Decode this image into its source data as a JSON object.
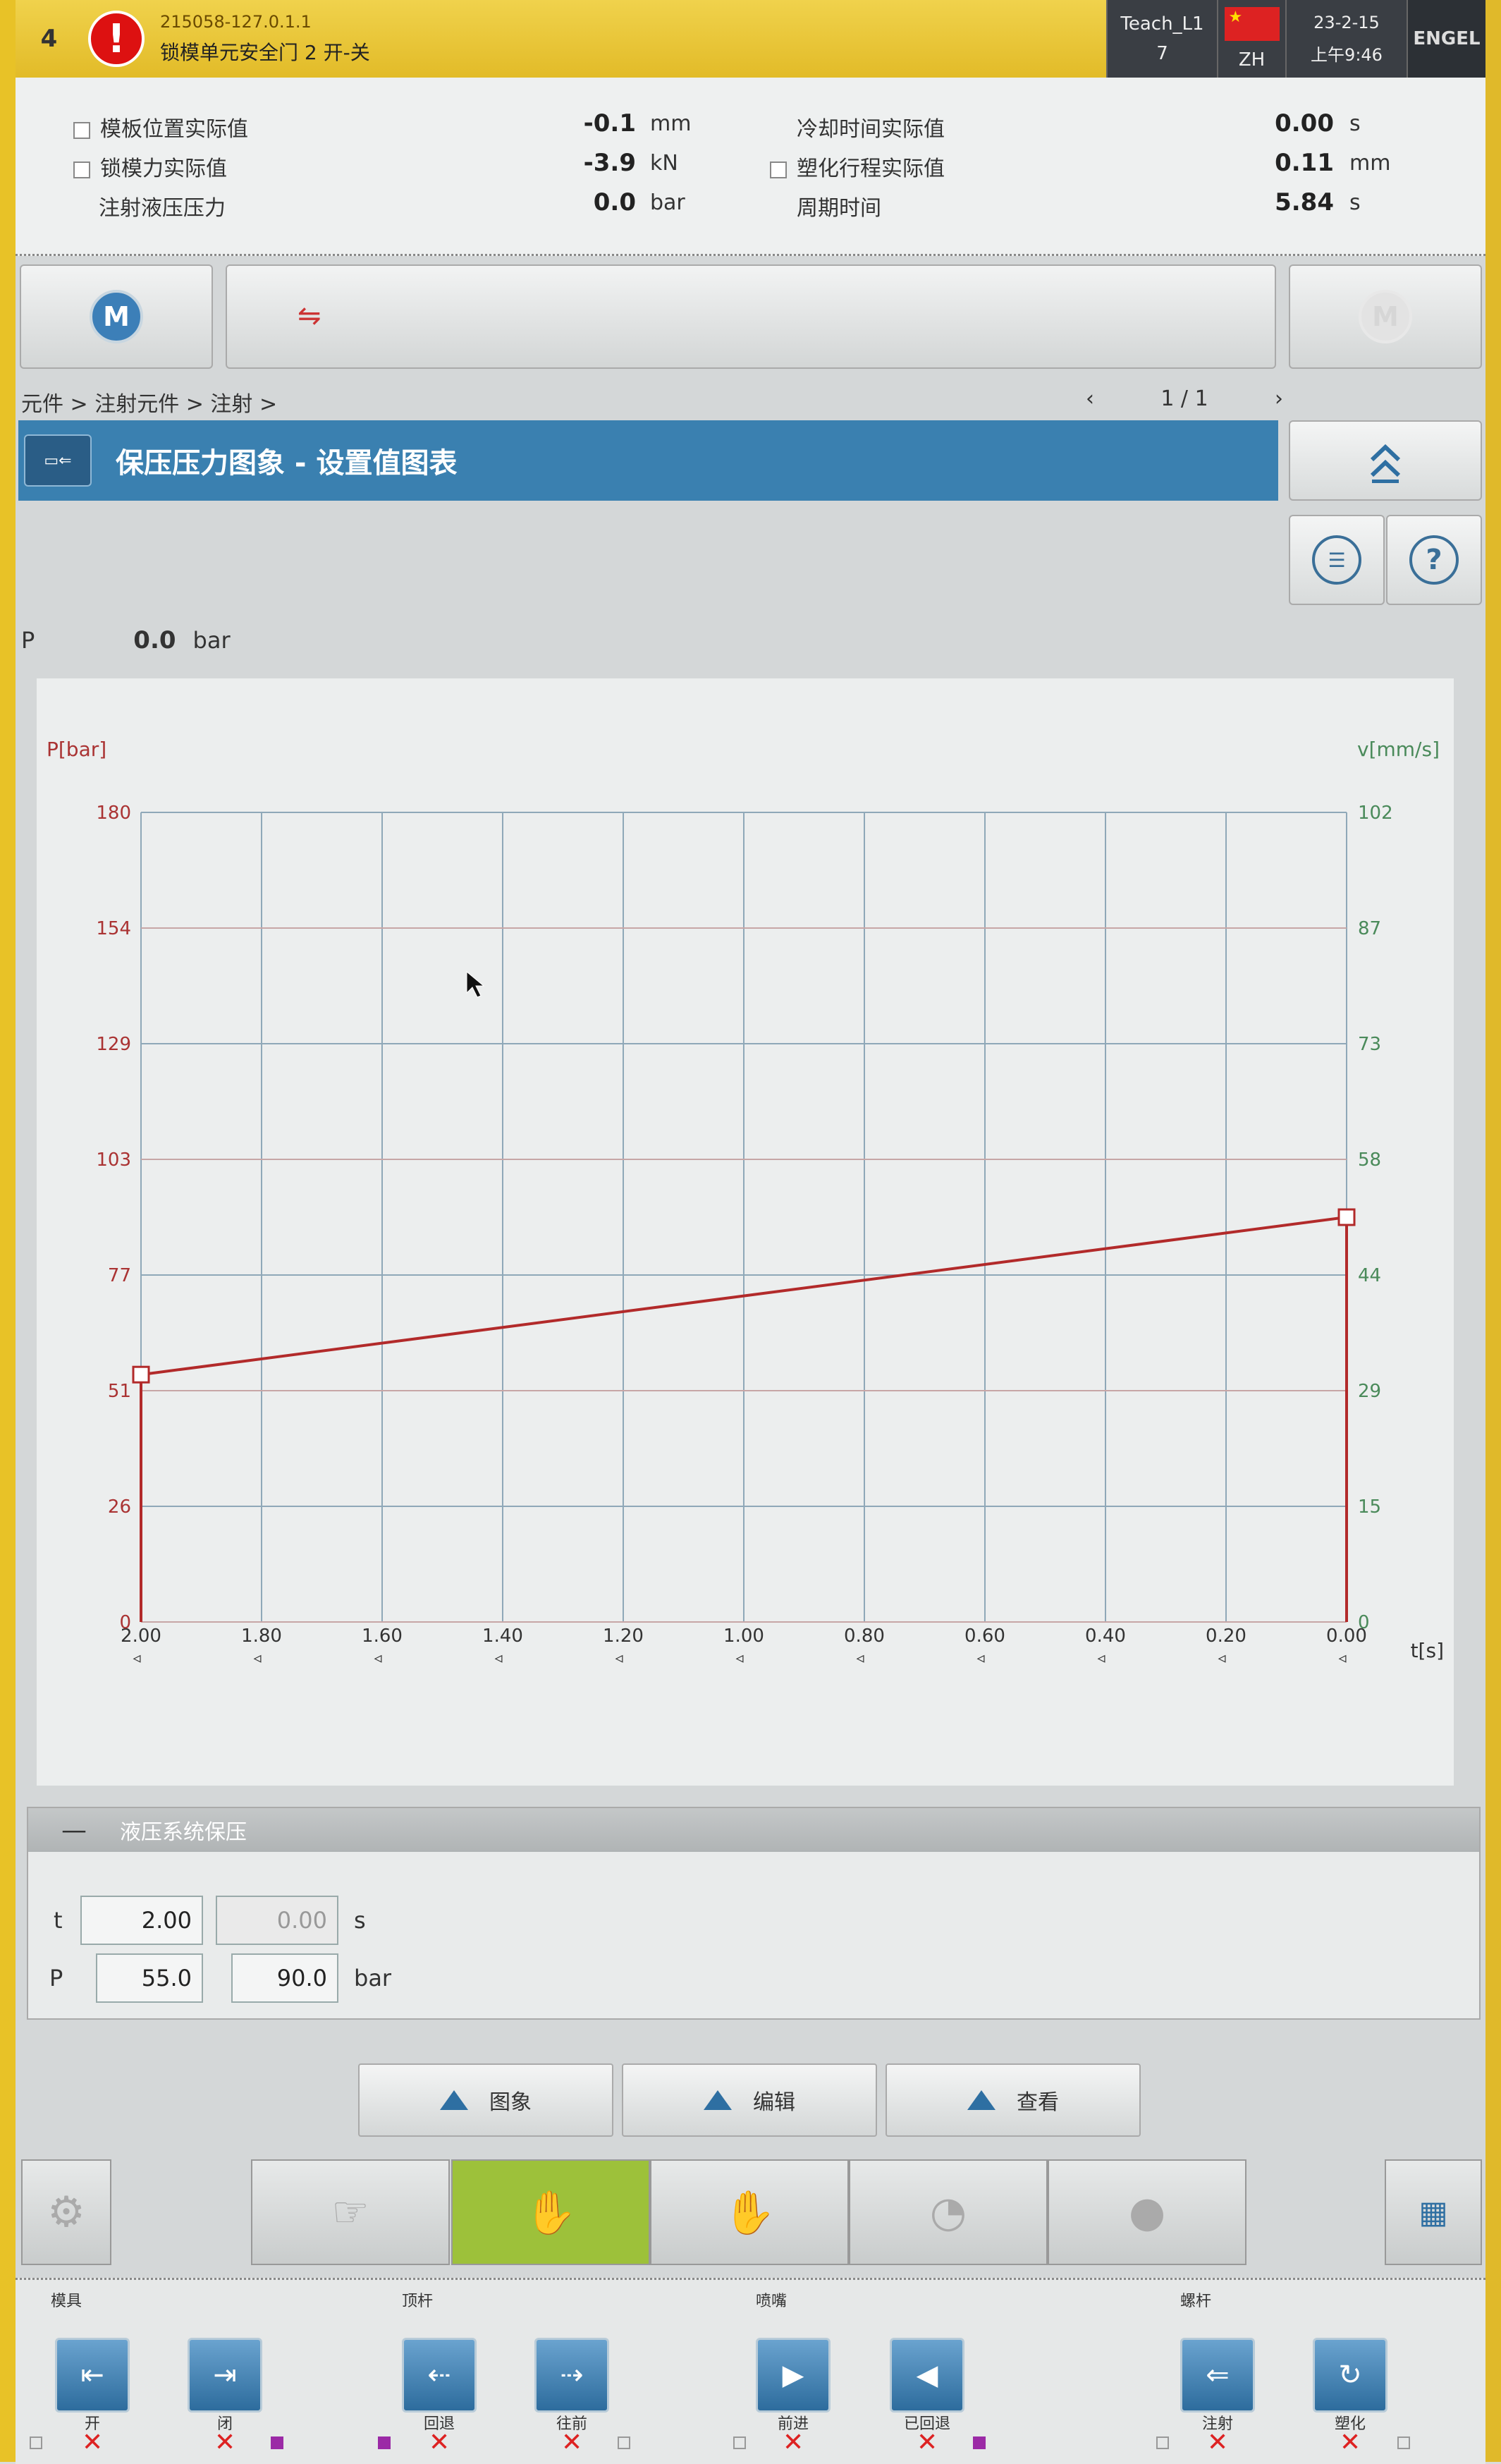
{
  "header": {
    "number": "4",
    "alarm_icon": "alert-icon",
    "message_line1": "215058-127.0.1.1",
    "message_line2": "锁模单元安全门 2 开-关",
    "user": "Teach_L1",
    "user_level": "7",
    "language": "ZH",
    "date": "23-2-15",
    "time": "上午9:46",
    "brand": "ENGEL"
  },
  "actual_values": [
    {
      "label": "模板位置实际值",
      "value": "-0.1",
      "unit": "mm",
      "checkbox": true
    },
    {
      "label": "锁模力实际值",
      "value": "-3.9",
      "unit": "kN",
      "checkbox": true
    },
    {
      "label": "注射液压压力",
      "value": "0.0",
      "unit": "bar",
      "checkbox": false
    },
    {
      "label": "冷却时间实际值",
      "value": "0.00",
      "unit": "s",
      "checkbox": false
    },
    {
      "label": "塑化行程实际值",
      "value": "0.11",
      "unit": "mm",
      "checkbox": true
    },
    {
      "label": "周期时间",
      "value": "5.84",
      "unit": "s",
      "checkbox": false
    }
  ],
  "strip": {
    "left_icon": "M",
    "right_icon": "M"
  },
  "breadcrumb": "元件 > 注射元件 > 注射 >",
  "pager": {
    "prev": "‹",
    "page": "1 / 1",
    "next": "›"
  },
  "title": "保压压力图象 - 设置值图表",
  "help_label": "?",
  "p_readout": {
    "label": "P",
    "value": "0.0",
    "unit": "bar"
  },
  "chart_data": {
    "type": "line",
    "ylabel_left": "P[bar]",
    "ylabel_right": "v[mm/s]",
    "xlabel": "t[s]",
    "x_ticks": [
      "2.00",
      "1.80",
      "1.60",
      "1.40",
      "1.20",
      "1.00",
      "0.80",
      "0.60",
      "0.40",
      "0.20",
      "0.00"
    ],
    "y_left_ticks": [
      "180",
      "154",
      "129",
      "103",
      "77",
      "51",
      "26",
      "0"
    ],
    "y_right_ticks": [
      "102",
      "87",
      "73",
      "58",
      "44",
      "29",
      "15",
      "0"
    ],
    "xlim": [
      2.0,
      0.0
    ],
    "ylim_left": [
      0,
      180
    ],
    "ylim_right": [
      0,
      102
    ],
    "grid": true,
    "series": [
      {
        "x": [
          2.0,
          2.0,
          0.0,
          0.0
        ],
        "y": [
          0,
          55.0,
          90.0,
          0
        ],
        "color": "#b22a2a"
      }
    ]
  },
  "panel": {
    "collapse": "—",
    "name": "液压系统保压",
    "t_label": "t",
    "t_value": "2.00",
    "t_value2": "0.00",
    "t_unit": "s",
    "p_label": "P",
    "p_value": "55.0",
    "p_value2": "90.0",
    "p_unit": "bar"
  },
  "tabs": [
    "图象",
    "编辑",
    "查看"
  ],
  "footer": {
    "groups": [
      "模具",
      "顶杆",
      "喷嘴",
      "螺杆"
    ],
    "buttons": [
      "开",
      "闭",
      "回退",
      "往前",
      "前进",
      "已回退",
      "注射",
      "塑化"
    ]
  }
}
